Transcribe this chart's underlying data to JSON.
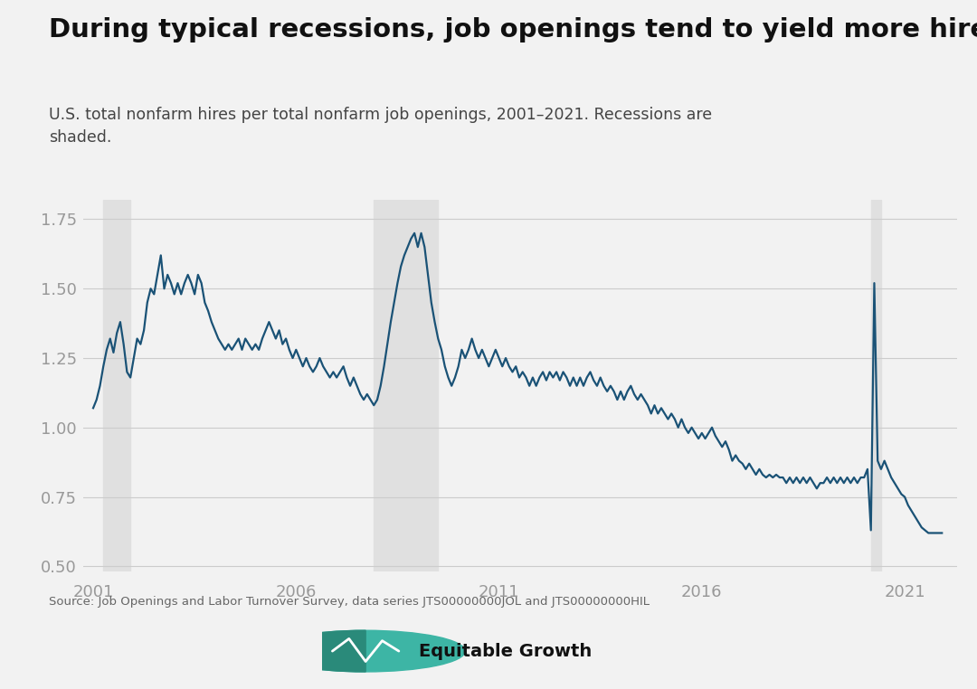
{
  "title": "During typical recessions, job openings tend to yield more hires",
  "subtitle": "U.S. total nonfarm hires per total nonfarm job openings, 2001–2021. Recessions are\nshaded.",
  "source_text": "Source: Job Openings and Labor Turnover Survey, data series JTS00000000JOL and JTS00000000HIL",
  "line_color": "#1a5276",
  "line_width": 1.6,
  "recession_color": "#e0e0e0",
  "background_color": "#f2f2f2",
  "ylim": [
    0.48,
    1.82
  ],
  "yticks": [
    0.5,
    0.75,
    1.0,
    1.25,
    1.5,
    1.75
  ],
  "xticks": [
    2001,
    2006,
    2011,
    2016,
    2021
  ],
  "recessions": [
    {
      "start": 2001.25,
      "end": 2001.917
    },
    {
      "start": 2007.917,
      "end": 2009.5
    },
    {
      "start": 2020.167,
      "end": 2020.417
    }
  ],
  "dates": [
    2001.0,
    2001.083,
    2001.167,
    2001.25,
    2001.333,
    2001.417,
    2001.5,
    2001.583,
    2001.667,
    2001.75,
    2001.833,
    2001.917,
    2002.0,
    2002.083,
    2002.167,
    2002.25,
    2002.333,
    2002.417,
    2002.5,
    2002.583,
    2002.667,
    2002.75,
    2002.833,
    2002.917,
    2003.0,
    2003.083,
    2003.167,
    2003.25,
    2003.333,
    2003.417,
    2003.5,
    2003.583,
    2003.667,
    2003.75,
    2003.833,
    2003.917,
    2004.0,
    2004.083,
    2004.167,
    2004.25,
    2004.333,
    2004.417,
    2004.5,
    2004.583,
    2004.667,
    2004.75,
    2004.833,
    2004.917,
    2005.0,
    2005.083,
    2005.167,
    2005.25,
    2005.333,
    2005.417,
    2005.5,
    2005.583,
    2005.667,
    2005.75,
    2005.833,
    2005.917,
    2006.0,
    2006.083,
    2006.167,
    2006.25,
    2006.333,
    2006.417,
    2006.5,
    2006.583,
    2006.667,
    2006.75,
    2006.833,
    2006.917,
    2007.0,
    2007.083,
    2007.167,
    2007.25,
    2007.333,
    2007.417,
    2007.5,
    2007.583,
    2007.667,
    2007.75,
    2007.833,
    2007.917,
    2008.0,
    2008.083,
    2008.167,
    2008.25,
    2008.333,
    2008.417,
    2008.5,
    2008.583,
    2008.667,
    2008.75,
    2008.833,
    2008.917,
    2009.0,
    2009.083,
    2009.167,
    2009.25,
    2009.333,
    2009.417,
    2009.5,
    2009.583,
    2009.667,
    2009.75,
    2009.833,
    2009.917,
    2010.0,
    2010.083,
    2010.167,
    2010.25,
    2010.333,
    2010.417,
    2010.5,
    2010.583,
    2010.667,
    2010.75,
    2010.833,
    2010.917,
    2011.0,
    2011.083,
    2011.167,
    2011.25,
    2011.333,
    2011.417,
    2011.5,
    2011.583,
    2011.667,
    2011.75,
    2011.833,
    2011.917,
    2012.0,
    2012.083,
    2012.167,
    2012.25,
    2012.333,
    2012.417,
    2012.5,
    2012.583,
    2012.667,
    2012.75,
    2012.833,
    2012.917,
    2013.0,
    2013.083,
    2013.167,
    2013.25,
    2013.333,
    2013.417,
    2013.5,
    2013.583,
    2013.667,
    2013.75,
    2013.833,
    2013.917,
    2014.0,
    2014.083,
    2014.167,
    2014.25,
    2014.333,
    2014.417,
    2014.5,
    2014.583,
    2014.667,
    2014.75,
    2014.833,
    2014.917,
    2015.0,
    2015.083,
    2015.167,
    2015.25,
    2015.333,
    2015.417,
    2015.5,
    2015.583,
    2015.667,
    2015.75,
    2015.833,
    2015.917,
    2016.0,
    2016.083,
    2016.167,
    2016.25,
    2016.333,
    2016.417,
    2016.5,
    2016.583,
    2016.667,
    2016.75,
    2016.833,
    2016.917,
    2017.0,
    2017.083,
    2017.167,
    2017.25,
    2017.333,
    2017.417,
    2017.5,
    2017.583,
    2017.667,
    2017.75,
    2017.833,
    2017.917,
    2018.0,
    2018.083,
    2018.167,
    2018.25,
    2018.333,
    2018.417,
    2018.5,
    2018.583,
    2018.667,
    2018.75,
    2018.833,
    2018.917,
    2019.0,
    2019.083,
    2019.167,
    2019.25,
    2019.333,
    2019.417,
    2019.5,
    2019.583,
    2019.667,
    2019.75,
    2019.833,
    2019.917,
    2020.0,
    2020.083,
    2020.167,
    2020.25,
    2020.333,
    2020.417,
    2020.5,
    2020.583,
    2020.667,
    2020.75,
    2020.833,
    2020.917,
    2021.0,
    2021.083,
    2021.167,
    2021.25,
    2021.333,
    2021.417,
    2021.5,
    2021.583,
    2021.667,
    2021.75,
    2021.833,
    2021.917
  ],
  "values": [
    1.07,
    1.1,
    1.15,
    1.22,
    1.28,
    1.32,
    1.27,
    1.34,
    1.38,
    1.3,
    1.2,
    1.18,
    1.25,
    1.32,
    1.3,
    1.35,
    1.45,
    1.5,
    1.48,
    1.55,
    1.62,
    1.5,
    1.55,
    1.52,
    1.48,
    1.52,
    1.48,
    1.52,
    1.55,
    1.52,
    1.48,
    1.55,
    1.52,
    1.45,
    1.42,
    1.38,
    1.35,
    1.32,
    1.3,
    1.28,
    1.3,
    1.28,
    1.3,
    1.32,
    1.28,
    1.32,
    1.3,
    1.28,
    1.3,
    1.28,
    1.32,
    1.35,
    1.38,
    1.35,
    1.32,
    1.35,
    1.3,
    1.32,
    1.28,
    1.25,
    1.28,
    1.25,
    1.22,
    1.25,
    1.22,
    1.2,
    1.22,
    1.25,
    1.22,
    1.2,
    1.18,
    1.2,
    1.18,
    1.2,
    1.22,
    1.18,
    1.15,
    1.18,
    1.15,
    1.12,
    1.1,
    1.12,
    1.1,
    1.08,
    1.1,
    1.15,
    1.22,
    1.3,
    1.38,
    1.45,
    1.52,
    1.58,
    1.62,
    1.65,
    1.68,
    1.7,
    1.65,
    1.7,
    1.65,
    1.55,
    1.45,
    1.38,
    1.32,
    1.28,
    1.22,
    1.18,
    1.15,
    1.18,
    1.22,
    1.28,
    1.25,
    1.28,
    1.32,
    1.28,
    1.25,
    1.28,
    1.25,
    1.22,
    1.25,
    1.28,
    1.25,
    1.22,
    1.25,
    1.22,
    1.2,
    1.22,
    1.18,
    1.2,
    1.18,
    1.15,
    1.18,
    1.15,
    1.18,
    1.2,
    1.17,
    1.2,
    1.18,
    1.2,
    1.17,
    1.2,
    1.18,
    1.15,
    1.18,
    1.15,
    1.18,
    1.15,
    1.18,
    1.2,
    1.17,
    1.15,
    1.18,
    1.15,
    1.13,
    1.15,
    1.13,
    1.1,
    1.13,
    1.1,
    1.13,
    1.15,
    1.12,
    1.1,
    1.12,
    1.1,
    1.08,
    1.05,
    1.08,
    1.05,
    1.07,
    1.05,
    1.03,
    1.05,
    1.03,
    1.0,
    1.03,
    1.0,
    0.98,
    1.0,
    0.98,
    0.96,
    0.98,
    0.96,
    0.98,
    1.0,
    0.97,
    0.95,
    0.93,
    0.95,
    0.92,
    0.88,
    0.9,
    0.88,
    0.87,
    0.85,
    0.87,
    0.85,
    0.83,
    0.85,
    0.83,
    0.82,
    0.83,
    0.82,
    0.83,
    0.82,
    0.82,
    0.8,
    0.82,
    0.8,
    0.82,
    0.8,
    0.82,
    0.8,
    0.82,
    0.8,
    0.78,
    0.8,
    0.8,
    0.82,
    0.8,
    0.82,
    0.8,
    0.82,
    0.8,
    0.82,
    0.8,
    0.82,
    0.8,
    0.82,
    0.82,
    0.85,
    0.63,
    1.52,
    0.88,
    0.85,
    0.88,
    0.85,
    0.82,
    0.8,
    0.78,
    0.76,
    0.75,
    0.72,
    0.7,
    0.68,
    0.66,
    0.64,
    0.63,
    0.62,
    0.62,
    0.62,
    0.62,
    0.62
  ]
}
